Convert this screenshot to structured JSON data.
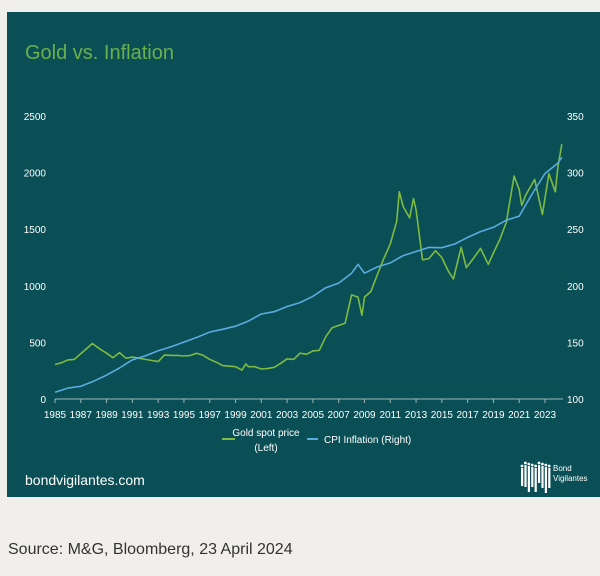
{
  "chart_data": {
    "type": "line",
    "title": "Gold vs. Inflation",
    "x_ticks": [
      "1985",
      "1987",
      "1989",
      "1991",
      "1993",
      "1995",
      "1997",
      "1999",
      "2001",
      "2003",
      "2005",
      "2007",
      "2009",
      "2011",
      "2013",
      "2015",
      "2017",
      "2019",
      "2021",
      "2023"
    ],
    "xlim": [
      1985,
      2024.3
    ],
    "y_left": {
      "ticks": [
        "0",
        "500",
        "1000",
        "1500",
        "2000",
        "2500"
      ],
      "lim": [
        0,
        2500
      ]
    },
    "y_right": {
      "ticks": [
        "100",
        "150",
        "200",
        "250",
        "300",
        "350"
      ],
      "lim": [
        100,
        350
      ]
    },
    "grid": false,
    "legend_placement": "bottom",
    "series": [
      {
        "name": "Gold spot price (Left)",
        "legend_lines": [
          "Gold spot price",
          "(Left)"
        ],
        "axis": "left",
        "color": "#7dbb42",
        "points": [
          [
            1985.0,
            305
          ],
          [
            1985.5,
            320
          ],
          [
            1986.0,
            345
          ],
          [
            1986.5,
            350
          ],
          [
            1987.0,
            400
          ],
          [
            1987.5,
            450
          ],
          [
            1987.9,
            490
          ],
          [
            1988.5,
            440
          ],
          [
            1989.0,
            405
          ],
          [
            1989.5,
            365
          ],
          [
            1990.0,
            410
          ],
          [
            1990.5,
            360
          ],
          [
            1991.0,
            370
          ],
          [
            1991.5,
            360
          ],
          [
            1992.0,
            350
          ],
          [
            1992.5,
            340
          ],
          [
            1993.0,
            330
          ],
          [
            1993.5,
            390
          ],
          [
            1994.0,
            385
          ],
          [
            1994.5,
            385
          ],
          [
            1995.0,
            380
          ],
          [
            1995.5,
            385
          ],
          [
            1996.0,
            405
          ],
          [
            1996.5,
            385
          ],
          [
            1997.0,
            350
          ],
          [
            1997.5,
            325
          ],
          [
            1998.0,
            295
          ],
          [
            1998.5,
            290
          ],
          [
            1999.0,
            285
          ],
          [
            1999.5,
            255
          ],
          [
            1999.8,
            310
          ],
          [
            2000.0,
            285
          ],
          [
            2000.5,
            285
          ],
          [
            2001.0,
            265
          ],
          [
            2001.5,
            270
          ],
          [
            2002.0,
            280
          ],
          [
            2002.5,
            315
          ],
          [
            2003.0,
            355
          ],
          [
            2003.5,
            350
          ],
          [
            2004.0,
            405
          ],
          [
            2004.5,
            395
          ],
          [
            2005.0,
            425
          ],
          [
            2005.5,
            430
          ],
          [
            2006.0,
            550
          ],
          [
            2006.5,
            630
          ],
          [
            2007.0,
            650
          ],
          [
            2007.5,
            670
          ],
          [
            2008.0,
            920
          ],
          [
            2008.5,
            900
          ],
          [
            2008.8,
            740
          ],
          [
            2009.0,
            900
          ],
          [
            2009.5,
            950
          ],
          [
            2010.0,
            1100
          ],
          [
            2010.5,
            1240
          ],
          [
            2011.0,
            1370
          ],
          [
            2011.5,
            1570
          ],
          [
            2011.7,
            1830
          ],
          [
            2012.0,
            1700
          ],
          [
            2012.5,
            1600
          ],
          [
            2012.8,
            1770
          ],
          [
            2013.0,
            1670
          ],
          [
            2013.5,
            1230
          ],
          [
            2014.0,
            1240
          ],
          [
            2014.5,
            1310
          ],
          [
            2015.0,
            1250
          ],
          [
            2015.5,
            1130
          ],
          [
            2015.9,
            1060
          ],
          [
            2016.5,
            1340
          ],
          [
            2016.9,
            1160
          ],
          [
            2017.5,
            1250
          ],
          [
            2018.0,
            1330
          ],
          [
            2018.6,
            1190
          ],
          [
            2019.0,
            1290
          ],
          [
            2019.5,
            1410
          ],
          [
            2020.0,
            1560
          ],
          [
            2020.6,
            1970
          ],
          [
            2021.0,
            1850
          ],
          [
            2021.2,
            1710
          ],
          [
            2021.5,
            1800
          ],
          [
            2022.2,
            1940
          ],
          [
            2022.8,
            1630
          ],
          [
            2023.3,
            1990
          ],
          [
            2023.8,
            1830
          ],
          [
            2024.0,
            2050
          ],
          [
            2024.3,
            2250
          ]
        ]
      },
      {
        "name": "CPI Inflation (Right)",
        "axis": "right",
        "color": "#5aabe0",
        "points": [
          [
            1985,
            106
          ],
          [
            1986,
            109.6
          ],
          [
            1987,
            111.2
          ],
          [
            1988,
            115.7
          ],
          [
            1989,
            121.1
          ],
          [
            1990,
            127.4
          ],
          [
            1991,
            134.6
          ],
          [
            1992,
            138.1
          ],
          [
            1993,
            142.6
          ],
          [
            1994,
            146.2
          ],
          [
            1995,
            150.3
          ],
          [
            1996,
            154.4
          ],
          [
            1997,
            159.1
          ],
          [
            1998,
            161.6
          ],
          [
            1999,
            164.3
          ],
          [
            2000,
            168.8
          ],
          [
            2001,
            175.1
          ],
          [
            2002,
            177.1
          ],
          [
            2003,
            181.7
          ],
          [
            2004,
            185.2
          ],
          [
            2005,
            190.7
          ],
          [
            2006,
            198.3
          ],
          [
            2007,
            202.4
          ],
          [
            2008,
            211.1
          ],
          [
            2008.5,
            219
          ],
          [
            2009,
            211.1
          ],
          [
            2010,
            216.7
          ],
          [
            2011,
            220.2
          ],
          [
            2012,
            226.7
          ],
          [
            2013,
            230.3
          ],
          [
            2014,
            233.9
          ],
          [
            2015,
            233.7
          ],
          [
            2016,
            236.9
          ],
          [
            2017,
            242.8
          ],
          [
            2018,
            247.9
          ],
          [
            2019,
            251.7
          ],
          [
            2020,
            257.97
          ],
          [
            2021,
            261.6
          ],
          [
            2022,
            281.1
          ],
          [
            2023,
            299.2
          ],
          [
            2024,
            308.4
          ],
          [
            2024.3,
            313.5
          ]
        ]
      }
    ]
  },
  "footer": {
    "site": "bondvigilantes.com",
    "logo_text": [
      "Bond",
      "Vigilantes"
    ]
  },
  "source": "Source: M&G, Bloomberg, 23 April 2024",
  "colors": {
    "panel": "#0a4f55",
    "title": "#6ab04c",
    "page": "#f0efeb"
  }
}
